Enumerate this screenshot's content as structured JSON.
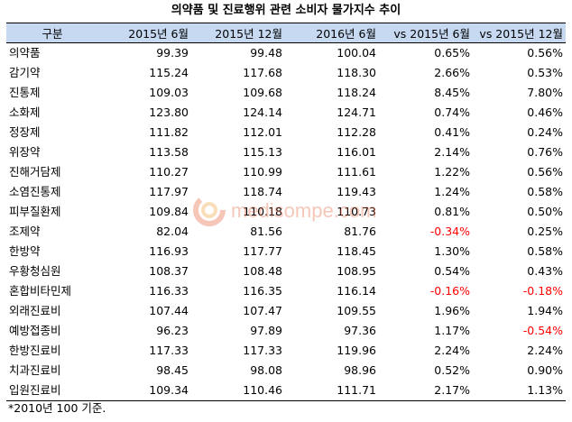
{
  "title": "의약품 및 진료행위 관련 소비자 물가지수 추이",
  "table": {
    "headers": [
      "구분",
      "2015년 6월",
      "2015년 12월",
      "2016년 6월",
      "vs 2015년 6월",
      "vs 2015년 12월"
    ],
    "rows": [
      [
        "의약품",
        "99.39",
        "99.48",
        "100.04",
        "0.65%",
        "0.56%"
      ],
      [
        "감기약",
        "115.24",
        "117.68",
        "118.30",
        "2.66%",
        "0.53%"
      ],
      [
        "진통제",
        "109.03",
        "109.68",
        "118.24",
        "8.45%",
        "7.80%"
      ],
      [
        "소화제",
        "123.80",
        "124.14",
        "124.71",
        "0.74%",
        "0.46%"
      ],
      [
        "정장제",
        "111.82",
        "112.01",
        "112.28",
        "0.41%",
        "0.24%"
      ],
      [
        "위장약",
        "113.58",
        "115.13",
        "116.01",
        "2.14%",
        "0.76%"
      ],
      [
        "진해거담제",
        "110.27",
        "110.99",
        "111.61",
        "1.22%",
        "0.56%"
      ],
      [
        "소염진통제",
        "117.97",
        "118.74",
        "119.43",
        "1.24%",
        "0.58%"
      ],
      [
        "피부질환제",
        "109.84",
        "110.18",
        "110.73",
        "0.81%",
        "0.50%"
      ],
      [
        "조제약",
        "82.04",
        "81.56",
        "81.76",
        "-0.34%",
        "0.25%"
      ],
      [
        "한방약",
        "116.93",
        "117.77",
        "118.45",
        "1.30%",
        "0.58%"
      ],
      [
        "우황청심원",
        "108.37",
        "108.48",
        "108.95",
        "0.54%",
        "0.43%"
      ],
      [
        "혼합비타민제",
        "116.33",
        "116.35",
        "116.14",
        "-0.16%",
        "-0.18%"
      ],
      [
        "외래진료비",
        "107.44",
        "107.47",
        "109.55",
        "1.96%",
        "1.94%"
      ],
      [
        "예방접종비",
        "96.23",
        "97.89",
        "97.36",
        "1.17%",
        "-0.54%"
      ],
      [
        "한방진료비",
        "117.33",
        "117.33",
        "119.96",
        "2.24%",
        "2.24%"
      ],
      [
        "치과진료비",
        "98.45",
        "98.08",
        "98.96",
        "0.52%",
        "0.90%"
      ],
      [
        "입원진료비",
        "109.34",
        "110.46",
        "111.71",
        "2.17%",
        "1.13%"
      ]
    ]
  },
  "note": "*2010년 100 기준.",
  "watermark": "medisompe.com",
  "colors": {
    "header_bg": "#c6d9f1",
    "negative": "#ff0000",
    "watermark": "#e8613a"
  }
}
